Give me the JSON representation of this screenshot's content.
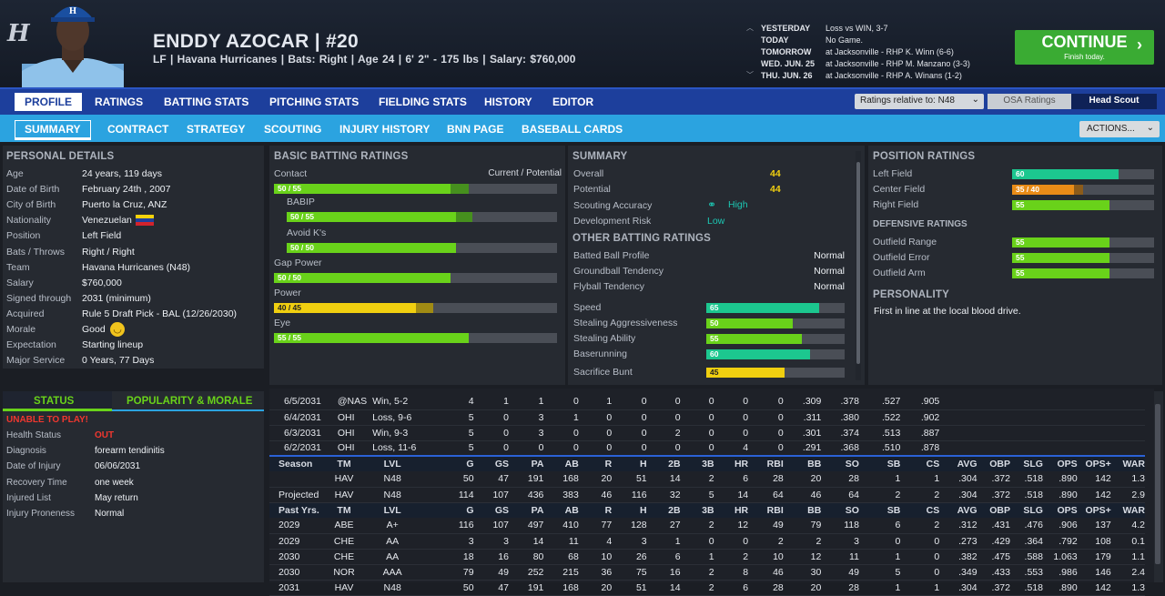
{
  "header": {
    "logo": "H",
    "name": "ENDDY AZOCAR  |  #20",
    "info": "LF | Havana Hurricanes | Bats: Right | Age 24 | 6' 2\" - 175 lbs | Salary: $760,000"
  },
  "schedule": [
    {
      "label": "YESTERDAY",
      "value": "Loss vs WIN, 3-7"
    },
    {
      "label": "TODAY",
      "value": "No Game."
    },
    {
      "label": "TOMORROW",
      "value": "at Jacksonville - RHP K. Winn (6-6)"
    },
    {
      "label": "WED. JUN. 25",
      "value": "at Jacksonville - RHP M. Manzano (3-3)"
    },
    {
      "label": "THU. JUN. 26",
      "value": "at Jacksonville - RHP A. Winans (1-2)"
    }
  ],
  "continue": {
    "label": "CONTINUE",
    "sub": "Finish today."
  },
  "nav1": [
    "PROFILE",
    "RATINGS",
    "BATTING STATS",
    "PITCHING STATS",
    "FIELDING STATS",
    "HISTORY",
    "EDITOR"
  ],
  "ratings_select": "Ratings relative to: N48",
  "osa": "OSA Ratings",
  "scout": "Head Scout",
  "nav2": [
    "SUMMARY",
    "CONTRACT",
    "STRATEGY",
    "SCOUTING",
    "INJURY HISTORY",
    "BNN PAGE",
    "BASEBALL CARDS"
  ],
  "actions": "ACTIONS...",
  "personal": {
    "title": "PERSONAL DETAILS",
    "rows": [
      [
        "Age",
        "24 years, 119 days"
      ],
      [
        "Date of Birth",
        "February 24th , 2007"
      ],
      [
        "City of Birth",
        "Puerto la Cruz, ANZ"
      ],
      [
        "Nationality",
        "Venezuelan"
      ],
      [
        "Position",
        "Left Field"
      ],
      [
        "Bats / Throws",
        "Right / Right"
      ],
      [
        "Team",
        "Havana Hurricanes (N48)"
      ],
      [
        "Salary",
        "$760,000"
      ],
      [
        "Signed through",
        "2031 (minimum)"
      ],
      [
        "Acquired",
        "Rule 5 Draft Pick - BAL (12/26/2030)"
      ],
      [
        "Morale",
        "Good"
      ],
      [
        "Expectation",
        "Starting lineup"
      ],
      [
        "Major Service",
        "0 Years, 77 Days"
      ]
    ]
  },
  "status": {
    "tab1": "STATUS",
    "tab2": "POPULARITY & MORALE",
    "alert": "UNABLE TO PLAY!",
    "rows": [
      [
        "Health Status",
        "OUT"
      ],
      [
        "Diagnosis",
        "forearm tendinitis"
      ],
      [
        "Date of Injury",
        "06/06/2031"
      ],
      [
        "Recovery Time",
        "one week"
      ],
      [
        "Injured List",
        "May return"
      ],
      [
        "Injury Proneness",
        "Normal"
      ]
    ]
  },
  "batting": {
    "title": "BASIC BATTING RATINGS",
    "col": "Current / Potential",
    "items": [
      {
        "name": "Contact",
        "cur": 50,
        "pot": 55,
        "text": "50 / 55",
        "color": "green",
        "indent": false
      },
      {
        "name": "BABIP",
        "cur": 50,
        "pot": 55,
        "text": "50 / 55",
        "color": "green",
        "indent": true
      },
      {
        "name": "Avoid K's",
        "cur": 50,
        "pot": 50,
        "text": "50 / 50",
        "color": "green",
        "indent": true
      },
      {
        "name": "Gap Power",
        "cur": 50,
        "pot": 50,
        "text": "50 / 50",
        "color": "green",
        "indent": false
      },
      {
        "name": "Power",
        "cur": 40,
        "pot": 45,
        "text": "40 / 45",
        "color": "yellow",
        "indent": false
      },
      {
        "name": "Eye",
        "cur": 55,
        "pot": 55,
        "text": "55 / 55",
        "color": "green",
        "indent": false
      }
    ]
  },
  "summary": {
    "title": "SUMMARY",
    "rows": [
      [
        "Overall",
        "44"
      ],
      [
        "Potential",
        "44"
      ]
    ],
    "scouting_label": "Scouting Accuracy",
    "scouting_value": "High",
    "dev_label": "Development Risk",
    "dev_value": "Low",
    "other_title": "OTHER BATTING RATINGS",
    "other": [
      [
        "Batted Ball Profile",
        "Normal"
      ],
      [
        "Groundball Tendency",
        "Normal"
      ],
      [
        "Flyball Tendency",
        "Normal"
      ]
    ],
    "speed": [
      {
        "name": "Speed",
        "v": 65,
        "color": "teal"
      },
      {
        "name": "Stealing Aggressiveness",
        "v": 50,
        "color": "green"
      },
      {
        "name": "Stealing Ability",
        "v": 55,
        "color": "green"
      },
      {
        "name": "Baserunning",
        "v": 60,
        "color": "teal"
      },
      {
        "name": "Sacrifice Bunt",
        "v": 45,
        "color": "yellow"
      }
    ]
  },
  "position": {
    "title": "POSITION RATINGS",
    "items": [
      {
        "name": "Left Field",
        "cur": 60,
        "pot": 60,
        "text": "60",
        "color": "teal"
      },
      {
        "name": "Center Field",
        "cur": 35,
        "pot": 40,
        "text": "35 / 40",
        "color": "orange"
      },
      {
        "name": "Right Field",
        "cur": 55,
        "pot": 55,
        "text": "55",
        "color": "green"
      }
    ],
    "def_title": "DEFENSIVE RATINGS",
    "def": [
      {
        "name": "Outfield Range",
        "v": 55
      },
      {
        "name": "Outfield Error",
        "v": 55
      },
      {
        "name": "Outfield Arm",
        "v": 55
      }
    ],
    "pers_title": "PERSONALITY",
    "pers": "First in line at the local blood drive."
  },
  "games": [
    [
      "6/5/2031",
      "@NAS",
      "Win, 5-2",
      "4",
      "1",
      "1",
      "0",
      "1",
      "0",
      "0",
      "0",
      "0",
      "0",
      ".309",
      ".378",
      ".527",
      ".905"
    ],
    [
      "6/4/2031",
      "OHI",
      "Loss, 9-6",
      "5",
      "0",
      "3",
      "1",
      "0",
      "0",
      "0",
      "0",
      "0",
      "0",
      ".311",
      ".380",
      ".522",
      ".902"
    ],
    [
      "6/3/2031",
      "OHI",
      "Win, 9-3",
      "5",
      "0",
      "3",
      "0",
      "0",
      "0",
      "2",
      "0",
      "0",
      "0",
      ".301",
      ".374",
      ".513",
      ".887"
    ],
    [
      "6/2/2031",
      "OHI",
      "Loss, 11-6",
      "5",
      "0",
      "0",
      "0",
      "0",
      "0",
      "0",
      "0",
      "4",
      "0",
      ".291",
      ".368",
      ".510",
      ".878"
    ]
  ],
  "season_head": [
    "Season",
    "TM",
    "LVL",
    "G",
    "GS",
    "PA",
    "AB",
    "R",
    "H",
    "2B",
    "3B",
    "HR",
    "RBI",
    "BB",
    "SO",
    "SB",
    "CS",
    "AVG",
    "OBP",
    "SLG",
    "OPS",
    "OPS+",
    "WAR"
  ],
  "season_rows": [
    [
      "",
      "HAV",
      "N48",
      "50",
      "47",
      "191",
      "168",
      "20",
      "51",
      "14",
      "2",
      "6",
      "28",
      "20",
      "28",
      "1",
      "1",
      ".304",
      ".372",
      ".518",
      ".890",
      "142",
      "1.3"
    ],
    [
      "Projected",
      "HAV",
      "N48",
      "114",
      "107",
      "436",
      "383",
      "46",
      "116",
      "32",
      "5",
      "14",
      "64",
      "46",
      "64",
      "2",
      "2",
      ".304",
      ".372",
      ".518",
      ".890",
      "142",
      "2.9"
    ]
  ],
  "past_head": [
    "Past Yrs.",
    "TM",
    "LVL",
    "G",
    "GS",
    "PA",
    "AB",
    "R",
    "H",
    "2B",
    "3B",
    "HR",
    "RBI",
    "BB",
    "SO",
    "SB",
    "CS",
    "AVG",
    "OBP",
    "SLG",
    "OPS",
    "OPS+",
    "WAR"
  ],
  "past_rows": [
    [
      "2029",
      "ABE",
      "A+",
      "116",
      "107",
      "497",
      "410",
      "77",
      "128",
      "27",
      "2",
      "12",
      "49",
      "79",
      "118",
      "6",
      "2",
      ".312",
      ".431",
      ".476",
      ".906",
      "137",
      "4.2"
    ],
    [
      "2029",
      "CHE",
      "AA",
      "3",
      "3",
      "14",
      "11",
      "4",
      "3",
      "1",
      "0",
      "0",
      "2",
      "2",
      "3",
      "0",
      "0",
      ".273",
      ".429",
      ".364",
      ".792",
      "108",
      "0.1"
    ],
    [
      "2030",
      "CHE",
      "AA",
      "18",
      "16",
      "80",
      "68",
      "10",
      "26",
      "6",
      "1",
      "2",
      "10",
      "12",
      "11",
      "1",
      "0",
      ".382",
      ".475",
      ".588",
      "1.063",
      "179",
      "1.1"
    ],
    [
      "2030",
      "NOR",
      "AAA",
      "79",
      "49",
      "252",
      "215",
      "36",
      "75",
      "16",
      "2",
      "8",
      "46",
      "30",
      "49",
      "5",
      "0",
      ".349",
      ".433",
      ".553",
      ".986",
      "146",
      "2.4"
    ],
    [
      "2031",
      "HAV",
      "N48",
      "50",
      "47",
      "191",
      "168",
      "20",
      "51",
      "14",
      "2",
      "6",
      "28",
      "20",
      "28",
      "1",
      "1",
      ".304",
      ".372",
      ".518",
      ".890",
      "142",
      "1.3"
    ]
  ]
}
